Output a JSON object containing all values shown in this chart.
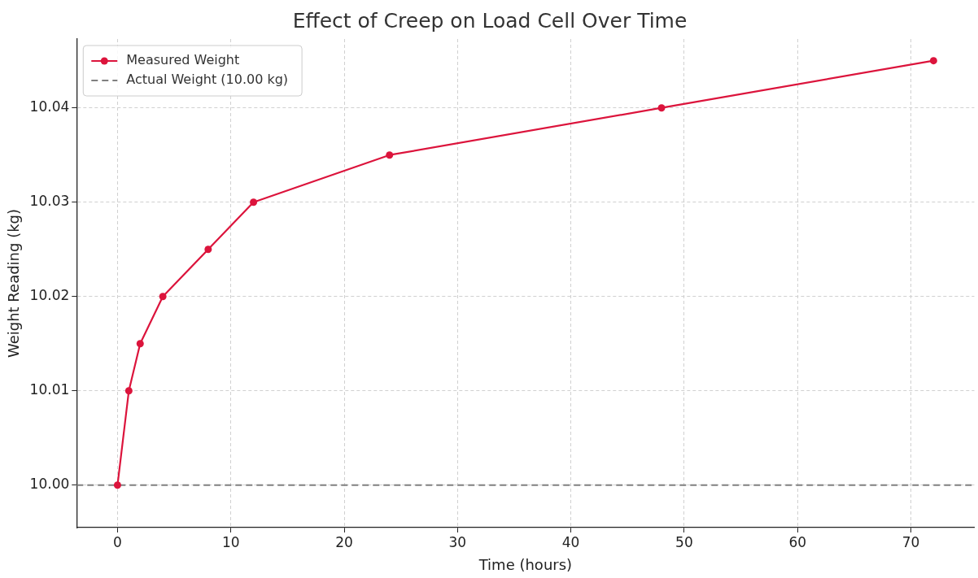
{
  "chart_data": {
    "type": "line",
    "title": "Effect of Creep on Load Cell Over Time",
    "xlabel": "Time (hours)",
    "ylabel": "Weight Reading (kg)",
    "series": [
      {
        "name": "Measured Weight",
        "color": "#dc143c",
        "x": [
          0,
          1,
          2,
          4,
          8,
          12,
          24,
          48,
          72
        ],
        "values": [
          10.0,
          10.01,
          10.015,
          10.02,
          10.025,
          10.03,
          10.035,
          10.04,
          10.045
        ]
      }
    ],
    "ref_lines": [
      {
        "axis": "y",
        "value": 10.0,
        "label": "Actual Weight (10.00 kg)",
        "color": "#808080",
        "line_style": "dashed"
      }
    ],
    "xlim": [
      -3.6,
      75.6
    ],
    "xticks": [
      0,
      10,
      20,
      30,
      40,
      50,
      60,
      70
    ],
    "ylim": [
      9.9955,
      10.0473
    ],
    "yticks": [
      {
        "value": 10.0,
        "label": "10.00"
      },
      {
        "value": 10.01,
        "label": "10.01"
      },
      {
        "value": 10.02,
        "label": "10.02"
      },
      {
        "value": 10.03,
        "label": "10.03"
      },
      {
        "value": 10.04,
        "label": "10.04"
      }
    ],
    "grid": true,
    "legend": "top left",
    "marker": "circle",
    "line_style": "solid"
  }
}
